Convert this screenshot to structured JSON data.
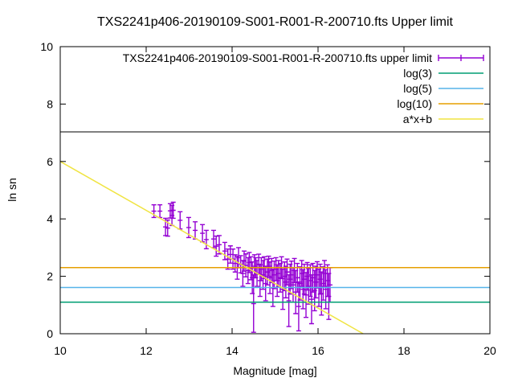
{
  "chart_data": {
    "type": "scatter",
    "title": "TXS2241p406-20190109-S001-R001-R-200710.fts Upper limit",
    "xlabel": "Magnitude [mag]",
    "ylabel": "ln sn",
    "xlim": [
      10,
      20
    ],
    "ylim": [
      0,
      10
    ],
    "xticks": [
      10,
      12,
      14,
      16,
      18,
      20
    ],
    "xtick_labels": [
      "10",
      "12",
      "14",
      "16",
      "18",
      "20"
    ],
    "yticks": [
      0,
      2,
      4,
      6,
      8,
      10
    ],
    "ytick_labels": [
      "0",
      "2",
      "4",
      "6",
      "8",
      "10"
    ],
    "grid": false,
    "legend_position": "inside top, boxed, right-aligned",
    "axis_color": "#000000",
    "background_color": "#ffffff",
    "series": [
      {
        "name": "TXS2241p406-20190109-S001-R001-R-200710.fts upper limit",
        "type": "errorbars",
        "color": "#9400d3",
        "points": [
          [
            12.18,
            4.27,
            0.22
          ],
          [
            12.32,
            4.27,
            0.22
          ],
          [
            12.45,
            3.72,
            0.3
          ],
          [
            12.5,
            3.68,
            0.28
          ],
          [
            12.56,
            4.28,
            0.25
          ],
          [
            12.6,
            4.12,
            0.35
          ],
          [
            12.63,
            4.3,
            0.28
          ],
          [
            12.79,
            3.95,
            0.3
          ],
          [
            12.99,
            3.7,
            0.35
          ],
          [
            13.14,
            3.6,
            0.3
          ],
          [
            13.31,
            3.5,
            0.3
          ],
          [
            13.4,
            3.28,
            0.32
          ],
          [
            13.57,
            3.3,
            0.3
          ],
          [
            13.63,
            3.05,
            0.35
          ],
          [
            13.7,
            3.1,
            0.32
          ],
          [
            13.83,
            2.88,
            0.3
          ],
          [
            13.9,
            2.6,
            0.35
          ],
          [
            13.96,
            2.76,
            0.3
          ],
          [
            14.02,
            2.6,
            0.35
          ],
          [
            14.07,
            2.45,
            0.3
          ],
          [
            14.12,
            2.3,
            0.4
          ],
          [
            14.15,
            2.65,
            0.35
          ],
          [
            14.2,
            2.42,
            0.3
          ],
          [
            14.25,
            2.1,
            0.45
          ],
          [
            14.28,
            2.53,
            0.35
          ],
          [
            14.32,
            2.38,
            0.4
          ],
          [
            14.37,
            2.2,
            0.45
          ],
          [
            14.4,
            2.48,
            0.35
          ],
          [
            14.44,
            2.28,
            0.4
          ],
          [
            14.47,
            1.95,
            0.55
          ],
          [
            14.5,
            1.05,
            1.0
          ],
          [
            14.52,
            2.35,
            0.4
          ],
          [
            14.55,
            2.3,
            0.35
          ],
          [
            14.58,
            2.1,
            0.45
          ],
          [
            14.62,
            2.42,
            0.35
          ],
          [
            14.65,
            1.85,
            0.55
          ],
          [
            14.68,
            2.25,
            0.4
          ],
          [
            14.72,
            2.05,
            0.5
          ],
          [
            14.75,
            2.3,
            0.38
          ],
          [
            14.78,
            1.75,
            0.6
          ],
          [
            14.82,
            2.15,
            0.45
          ],
          [
            14.85,
            2.35,
            0.35
          ],
          [
            14.88,
            1.95,
            0.55
          ],
          [
            14.92,
            2.2,
            0.42
          ],
          [
            14.95,
            1.6,
            0.65
          ],
          [
            14.98,
            2.05,
            0.48
          ],
          [
            15.02,
            2.25,
            0.4
          ],
          [
            15.05,
            1.85,
            0.55
          ],
          [
            15.08,
            2.1,
            0.45
          ],
          [
            15.12,
            1.95,
            0.5
          ],
          [
            15.15,
            2.3,
            0.38
          ],
          [
            15.18,
            1.55,
            0.7
          ],
          [
            15.22,
            2.0,
            0.5
          ],
          [
            15.25,
            1.8,
            0.55
          ],
          [
            15.28,
            2.15,
            0.45
          ],
          [
            15.32,
            1.15,
            0.9
          ],
          [
            15.35,
            1.9,
            0.52
          ],
          [
            15.38,
            2.05,
            0.48
          ],
          [
            15.42,
            1.7,
            0.6
          ],
          [
            15.45,
            2.2,
            0.42
          ],
          [
            15.48,
            1.45,
            0.75
          ],
          [
            15.52,
            1.95,
            0.5
          ],
          [
            15.55,
            0.95,
            0.85
          ],
          [
            15.58,
            1.75,
            0.58
          ],
          [
            15.62,
            2.1,
            0.45
          ],
          [
            15.65,
            1.55,
            0.68
          ],
          [
            15.68,
            1.9,
            0.52
          ],
          [
            15.72,
            1.35,
            0.78
          ],
          [
            15.75,
            2.0,
            0.48
          ],
          [
            15.78,
            1.65,
            0.62
          ],
          [
            15.82,
            1.85,
            0.55
          ],
          [
            15.85,
            1.2,
            0.85
          ],
          [
            15.88,
            1.95,
            0.5
          ],
          [
            15.92,
            1.5,
            0.7
          ],
          [
            15.95,
            1.8,
            0.55
          ],
          [
            15.98,
            2.05,
            0.46
          ],
          [
            16.02,
            1.6,
            0.65
          ],
          [
            16.05,
            1.9,
            0.52
          ],
          [
            16.08,
            1.4,
            0.75
          ],
          [
            16.12,
            1.75,
            0.58
          ],
          [
            16.15,
            2.1,
            0.45
          ],
          [
            16.18,
            1.55,
            0.68
          ],
          [
            16.22,
            1.85,
            0.55
          ],
          [
            16.25,
            1.3,
            0.8
          ],
          [
            16.28,
            1.7,
            0.6
          ]
        ]
      },
      {
        "name": "log(3)",
        "type": "hline",
        "color": "#009e73",
        "y": 1.0986
      },
      {
        "name": "log(5)",
        "type": "hline",
        "color": "#56b4e9",
        "y": 1.6094
      },
      {
        "name": "log(10)",
        "type": "hline",
        "color": "#e69f00",
        "y": 2.3026
      },
      {
        "name": "a*x+b",
        "type": "line",
        "color": "#f0e442",
        "x1": 10,
        "y1": 6.0,
        "x2": 17.05,
        "y2": 0.0
      }
    ]
  }
}
